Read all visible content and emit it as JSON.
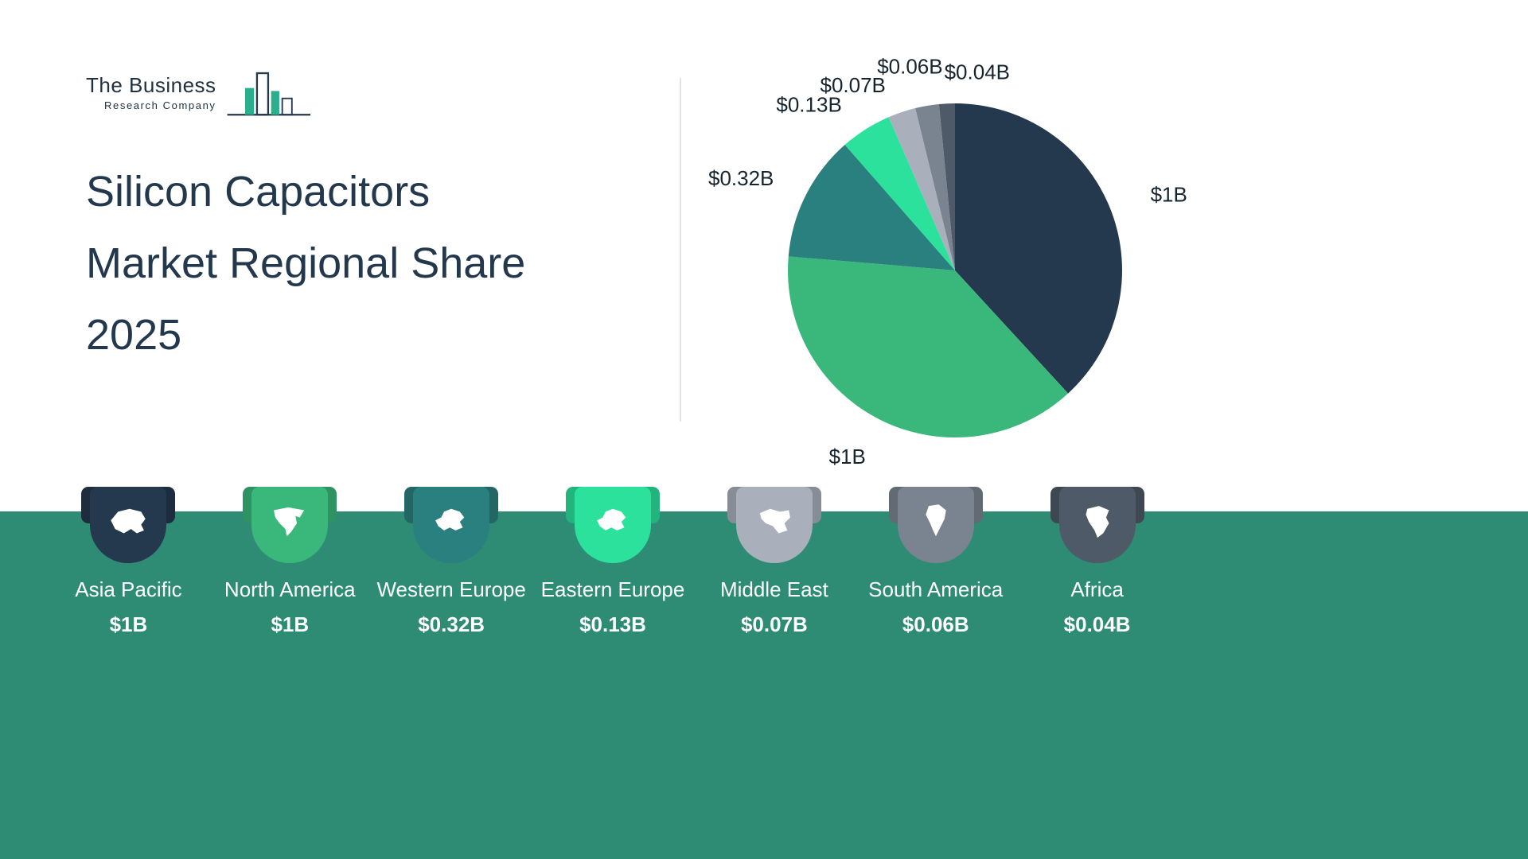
{
  "logo": {
    "name": "The Business",
    "subtitle": "Research Company"
  },
  "title": {
    "lines": [
      "Silicon Capacitors",
      "Market Regional Share",
      "2025"
    ]
  },
  "theme": {
    "band_color": "#2E8B74",
    "title_color": "#24384D",
    "accent_teal": "#2BAE8C"
  },
  "chart_data": {
    "type": "pie",
    "title": "Silicon Capacitors Market Regional Share 2025",
    "categories": [
      "Asia Pacific",
      "North America",
      "Western Europe",
      "Eastern Europe",
      "Middle East",
      "South America",
      "Africa"
    ],
    "values": [
      1,
      1,
      0.32,
      0.13,
      0.07,
      0.06,
      0.04
    ],
    "value_labels": [
      "$1B",
      "$1B",
      "$0.32B",
      "$0.13B",
      "$0.07B",
      "$0.06B",
      "$0.04B"
    ],
    "colors": [
      "#24384E",
      "#3AB87C",
      "#2A807E",
      "#2BE19B",
      "#A9B0BC",
      "#7A8490",
      "#4E5A68"
    ],
    "start_angle_deg": 0,
    "direction": "clockwise",
    "legend_position": "bottom",
    "grid": false
  },
  "legend": {
    "items": [
      {
        "region": "Asia Pacific",
        "value": "$1B",
        "color": "#24384E",
        "icon": "asia-map-icon"
      },
      {
        "region": "North America",
        "value": "$1B",
        "color": "#3AB87C",
        "icon": "north-america-map-icon"
      },
      {
        "region": "Western Europe",
        "value": "$0.32B",
        "color": "#2A807E",
        "icon": "western-europe-map-icon"
      },
      {
        "region": "Eastern Europe",
        "value": "$0.13B",
        "color": "#2BE19B",
        "icon": "eastern-europe-map-icon"
      },
      {
        "region": "Middle East",
        "value": "$0.07B",
        "color": "#A9B0BC",
        "icon": "middle-east-map-icon"
      },
      {
        "region": "South America",
        "value": "$0.06B",
        "color": "#7A8490",
        "icon": "south-america-map-icon"
      },
      {
        "region": "Africa",
        "value": "$0.04B",
        "color": "#4E5A68",
        "icon": "africa-map-icon"
      }
    ]
  }
}
